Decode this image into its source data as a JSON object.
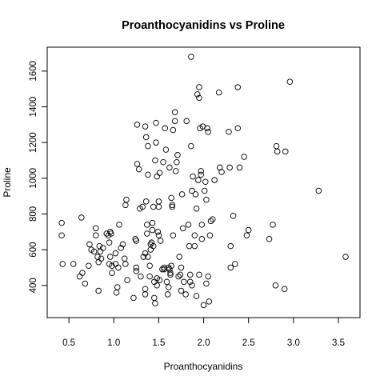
{
  "chart_data": {
    "type": "scatter",
    "title": "Proanthocyanidins vs Proline",
    "xlabel": "Proanthocyanidins",
    "ylabel": "Proline",
    "xlim": [
      0.41,
      3.58
    ],
    "ylim": [
      278,
      1680
    ],
    "xticks": [
      0.5,
      1.0,
      1.5,
      2.0,
      2.5,
      3.0,
      3.5
    ],
    "xtick_labels": [
      "0.5",
      "1.0",
      "1.5",
      "2.0",
      "2.5",
      "3.0",
      "3.5"
    ],
    "yticks": [
      400,
      600,
      800,
      1000,
      1200,
      1400,
      1600
    ],
    "ytick_labels": [
      "400",
      "600",
      "800",
      "1000",
      "1200",
      "1400",
      "1600"
    ],
    "grid": false,
    "legend": false,
    "marker": "open-circle",
    "color": "#000000",
    "points": [
      [
        0.42,
        750
      ],
      [
        0.42,
        680
      ],
      [
        0.43,
        520
      ],
      [
        0.55,
        520
      ],
      [
        0.62,
        450
      ],
      [
        0.64,
        780
      ],
      [
        0.65,
        470
      ],
      [
        0.68,
        410
      ],
      [
        0.72,
        510
      ],
      [
        0.73,
        630
      ],
      [
        0.75,
        600
      ],
      [
        0.78,
        590
      ],
      [
        0.8,
        720
      ],
      [
        0.8,
        680
      ],
      [
        0.82,
        560
      ],
      [
        0.83,
        530
      ],
      [
        0.83,
        370
      ],
      [
        0.84,
        620
      ],
      [
        0.85,
        590
      ],
      [
        0.86,
        550
      ],
      [
        0.88,
        610
      ],
      [
        0.92,
        690
      ],
      [
        0.94,
        680
      ],
      [
        0.95,
        640
      ],
      [
        0.95,
        520
      ],
      [
        0.96,
        700
      ],
      [
        0.96,
        560
      ],
      [
        0.97,
        690
      ],
      [
        0.98,
        470
      ],
      [
        0.98,
        510
      ],
      [
        1.02,
        580
      ],
      [
        1.02,
        520
      ],
      [
        1.03,
        360
      ],
      [
        1.04,
        390
      ],
      [
        1.05,
        500
      ],
      [
        1.06,
        740
      ],
      [
        1.08,
        610
      ],
      [
        1.1,
        630
      ],
      [
        1.12,
        550
      ],
      [
        1.13,
        520
      ],
      [
        1.13,
        850
      ],
      [
        1.14,
        880
      ],
      [
        1.15,
        430
      ],
      [
        1.22,
        330
      ],
      [
        1.24,
        660
      ],
      [
        1.25,
        500
      ],
      [
        1.25,
        480
      ],
      [
        1.25,
        650
      ],
      [
        1.26,
        1300
      ],
      [
        1.26,
        1080
      ],
      [
        1.28,
        1050
      ],
      [
        1.29,
        830
      ],
      [
        1.3,
        450
      ],
      [
        1.32,
        840
      ],
      [
        1.33,
        560
      ],
      [
        1.35,
        580
      ],
      [
        1.35,
        350
      ],
      [
        1.35,
        380
      ],
      [
        1.35,
        1290
      ],
      [
        1.36,
        1230
      ],
      [
        1.36,
        870
      ],
      [
        1.37,
        740
      ],
      [
        1.37,
        690
      ],
      [
        1.38,
        560
      ],
      [
        1.38,
        1020
      ],
      [
        1.38,
        1180
      ],
      [
        1.4,
        450
      ],
      [
        1.4,
        510
      ],
      [
        1.41,
        600
      ],
      [
        1.41,
        630
      ],
      [
        1.42,
        640
      ],
      [
        1.43,
        710
      ],
      [
        1.43,
        750
      ],
      [
        1.44,
        840
      ],
      [
        1.44,
        620
      ],
      [
        1.45,
        420
      ],
      [
        1.45,
        330
      ],
      [
        1.46,
        300
      ],
      [
        1.46,
        1100
      ],
      [
        1.47,
        1200
      ],
      [
        1.47,
        1310
      ],
      [
        1.48,
        1010
      ],
      [
        1.48,
        440
      ],
      [
        1.48,
        400
      ],
      [
        1.49,
        700
      ],
      [
        1.5,
        840
      ],
      [
        1.5,
        870
      ],
      [
        1.5,
        680
      ],
      [
        1.51,
        430
      ],
      [
        1.51,
        1030
      ],
      [
        1.52,
        650
      ],
      [
        1.54,
        490
      ],
      [
        1.55,
        1090
      ],
      [
        1.56,
        490
      ],
      [
        1.56,
        500
      ],
      [
        1.57,
        1280
      ],
      [
        1.58,
        1160
      ],
      [
        1.59,
        420
      ],
      [
        1.6,
        350
      ],
      [
        1.61,
        390
      ],
      [
        1.61,
        500
      ],
      [
        1.62,
        1060
      ],
      [
        1.62,
        490
      ],
      [
        1.63,
        470
      ],
      [
        1.63,
        460
      ],
      [
        1.64,
        510
      ],
      [
        1.64,
        890
      ],
      [
        1.65,
        850
      ],
      [
        1.65,
        840
      ],
      [
        1.66,
        1270
      ],
      [
        1.66,
        680
      ],
      [
        1.68,
        1370
      ],
      [
        1.68,
        1320
      ],
      [
        1.69,
        1040
      ],
      [
        1.7,
        1090
      ],
      [
        1.71,
        1130
      ],
      [
        1.72,
        450
      ],
      [
        1.73,
        560
      ],
      [
        1.74,
        460
      ],
      [
        1.75,
        370
      ],
      [
        1.75,
        500
      ],
      [
        1.76,
        910
      ],
      [
        1.77,
        720
      ],
      [
        1.78,
        420
      ],
      [
        1.8,
        350
      ],
      [
        1.81,
        1320
      ],
      [
        1.83,
        740
      ],
      [
        1.84,
        620
      ],
      [
        1.85,
        420
      ],
      [
        1.85,
        460
      ],
      [
        1.86,
        1680
      ],
      [
        1.86,
        1180
      ],
      [
        1.87,
        930
      ],
      [
        1.87,
        400
      ],
      [
        1.88,
        1010
      ],
      [
        1.9,
        620
      ],
      [
        1.9,
        680
      ],
      [
        1.91,
        910
      ],
      [
        1.92,
        830
      ],
      [
        1.92,
        340
      ],
      [
        1.93,
        1470
      ],
      [
        1.94,
        990
      ],
      [
        1.95,
        1510
      ],
      [
        1.95,
        1450
      ],
      [
        1.95,
        460
      ],
      [
        1.96,
        1280
      ],
      [
        1.97,
        1040
      ],
      [
        1.97,
        1020
      ],
      [
        1.98,
        740
      ],
      [
        1.98,
        660
      ],
      [
        1.99,
        1290
      ],
      [
        2.0,
        290
      ],
      [
        2.01,
        930
      ],
      [
        2.02,
        980
      ],
      [
        2.03,
        880
      ],
      [
        2.03,
        410
      ],
      [
        2.04,
        1280
      ],
      [
        2.05,
        1260
      ],
      [
        2.05,
        450
      ],
      [
        2.06,
        310
      ],
      [
        2.07,
        680
      ],
      [
        2.08,
        760
      ],
      [
        2.1,
        770
      ],
      [
        2.12,
        990
      ],
      [
        2.17,
        1480
      ],
      [
        2.18,
        1060
      ],
      [
        2.2,
        1035
      ],
      [
        2.28,
        1260
      ],
      [
        2.29,
        1060
      ],
      [
        2.3,
        620
      ],
      [
        2.3,
        500
      ],
      [
        2.33,
        790
      ],
      [
        2.35,
        520
      ],
      [
        2.38,
        1280
      ],
      [
        2.38,
        1510
      ],
      [
        2.4,
        1060
      ],
      [
        2.45,
        1120
      ],
      [
        2.48,
        680
      ],
      [
        2.5,
        710
      ],
      [
        2.73,
        660
      ],
      [
        2.77,
        740
      ],
      [
        2.8,
        400
      ],
      [
        2.81,
        1180
      ],
      [
        2.82,
        1150
      ],
      [
        2.9,
        380
      ],
      [
        2.91,
        1150
      ],
      [
        2.96,
        1540
      ],
      [
        3.28,
        930
      ],
      [
        3.58,
        560
      ]
    ]
  }
}
